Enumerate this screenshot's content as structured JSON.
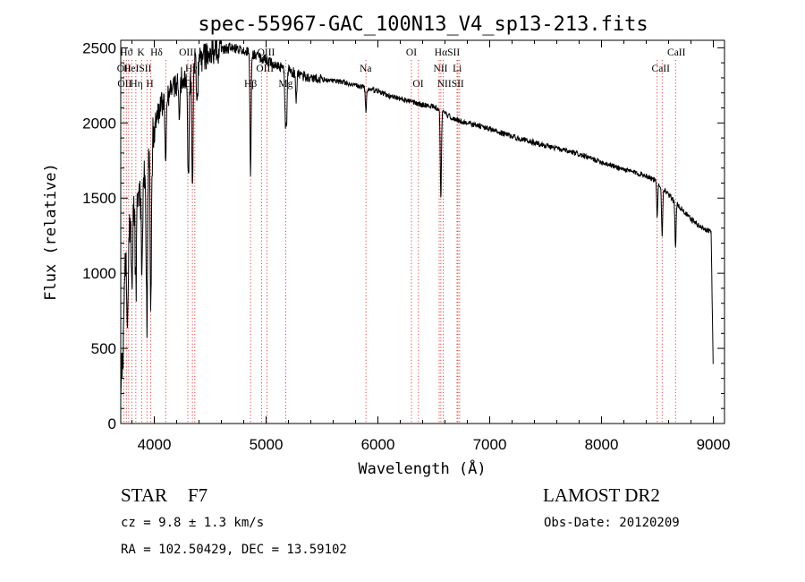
{
  "chart_data": {
    "type": "line",
    "title": "spec-55967-GAC_100N13_V4_sp13-213.fits",
    "xlabel": "Wavelength (Å)",
    "ylabel": "Flux (relative)",
    "xlim": [
      3700,
      9100
    ],
    "ylim": [
      0,
      2550
    ],
    "xticks": [
      "4000",
      "5000",
      "6000",
      "7000",
      "8000",
      "9000"
    ],
    "yticks": [
      "0",
      "500",
      "1000",
      "1500",
      "2000",
      "2500"
    ],
    "continuum": {
      "x": [
        3700,
        3720,
        3760,
        3800,
        3850,
        3900,
        3950,
        4000,
        4050,
        4100,
        4150,
        4200,
        4250,
        4300,
        4350,
        4400,
        4450,
        4500,
        4600,
        4700,
        4800,
        4900,
        5000,
        5100,
        5200,
        5300,
        5400,
        5500,
        5600,
        5700,
        5800,
        5900,
        6000,
        6100,
        6200,
        6300,
        6400,
        6500,
        6600,
        6700,
        6800,
        6900,
        7000,
        7200,
        7400,
        7600,
        7800,
        8000,
        8200,
        8400,
        8500,
        8600,
        8700,
        8800,
        8900,
        8980,
        9000
      ],
      "y": [
        200,
        900,
        1200,
        1420,
        1540,
        1620,
        1780,
        1950,
        2100,
        2150,
        2220,
        2260,
        2300,
        2250,
        2400,
        2420,
        2440,
        2460,
        2490,
        2500,
        2480,
        2450,
        2420,
        2380,
        2350,
        2320,
        2300,
        2290,
        2280,
        2270,
        2250,
        2230,
        2210,
        2180,
        2160,
        2140,
        2120,
        2110,
        2060,
        2020,
        2000,
        1980,
        1960,
        1910,
        1870,
        1830,
        1790,
        1740,
        1690,
        1650,
        1610,
        1520,
        1440,
        1360,
        1300,
        1280,
        300
      ]
    },
    "absorption_lines": [
      {
        "x": 3720,
        "depth": 500
      },
      {
        "x": 3760,
        "depth": 600
      },
      {
        "x": 3800,
        "depth": 550
      },
      {
        "x": 3835,
        "depth": 650
      },
      {
        "x": 3889,
        "depth": 700
      },
      {
        "x": 3934,
        "depth": 1050
      },
      {
        "x": 3969,
        "depth": 1100
      },
      {
        "x": 4102,
        "depth": 420
      },
      {
        "x": 4226,
        "depth": 250
      },
      {
        "x": 4305,
        "depth": 650
      },
      {
        "x": 4341,
        "depth": 820
      },
      {
        "x": 4384,
        "depth": 300
      },
      {
        "x": 4861,
        "depth": 830
      },
      {
        "x": 5172,
        "depth": 330
      },
      {
        "x": 5183,
        "depth": 360
      },
      {
        "x": 5269,
        "depth": 180
      },
      {
        "x": 5893,
        "depth": 150
      },
      {
        "x": 6563,
        "depth": 580
      },
      {
        "x": 8498,
        "depth": 240
      },
      {
        "x": 8542,
        "depth": 330
      },
      {
        "x": 8662,
        "depth": 300
      }
    ],
    "line_markers": [
      {
        "label": "Hϑ",
        "x": 3750,
        "row": 0
      },
      {
        "label": "K",
        "x": 3880,
        "row": 0
      },
      {
        "label": "Hδ",
        "x": 4020,
        "row": 0
      },
      {
        "label": "OIII",
        "x": 4300,
        "row": 0
      },
      {
        "label": "OIII",
        "x": 5000,
        "row": 0
      },
      {
        "label": "OI",
        "x": 6300,
        "row": 0
      },
      {
        "label": "HαSII",
        "x": 6620,
        "row": 0
      },
      {
        "label": "CaII",
        "x": 8670,
        "row": 0
      },
      {
        "label": "OII",
        "x": 3730,
        "row": 1
      },
      {
        "label": "HeISII",
        "x": 3850,
        "row": 1
      },
      {
        "label": "Hγ",
        "x": 4330,
        "row": 1
      },
      {
        "label": "OIII",
        "x": 4990,
        "row": 1
      },
      {
        "label": "Na",
        "x": 5890,
        "row": 1
      },
      {
        "label": "NII",
        "x": 6560,
        "row": 1
      },
      {
        "label": "Li",
        "x": 6710,
        "row": 1
      },
      {
        "label": "CaII",
        "x": 8530,
        "row": 1
      },
      {
        "label": "OII",
        "x": 3735,
        "row": 2
      },
      {
        "label": "Hη",
        "x": 3840,
        "row": 2
      },
      {
        "label": "H",
        "x": 3960,
        "row": 2
      },
      {
        "label": "G",
        "x": 4300,
        "row": 2
      },
      {
        "label": "Hβ",
        "x": 4861,
        "row": 2
      },
      {
        "label": "Mg",
        "x": 5175,
        "row": 2
      },
      {
        "label": "OI",
        "x": 6360,
        "row": 2
      },
      {
        "label": "NIISII",
        "x": 6650,
        "row": 2
      }
    ],
    "marker_lines": [
      3727,
      3750,
      3771,
      3798,
      3835,
      3889,
      3934,
      3969,
      4102,
      4300,
      4341,
      4363,
      4861,
      4959,
      5007,
      5175,
      5893,
      6300,
      6363,
      6548,
      6563,
      6584,
      6708,
      6716,
      6731,
      8498,
      8542,
      8662
    ]
  },
  "info": {
    "object": "STAR",
    "subclass": "F7",
    "survey": "LAMOST DR2",
    "cz": "cz = 9.8 ± 1.3 km/s",
    "obsdate": "Obs-Date: 20120209",
    "radec": "RA = 102.50429, DEC =  13.59102"
  },
  "colors": {
    "line": "#000000",
    "marker": "#e01010",
    "background": "#ffffff"
  }
}
